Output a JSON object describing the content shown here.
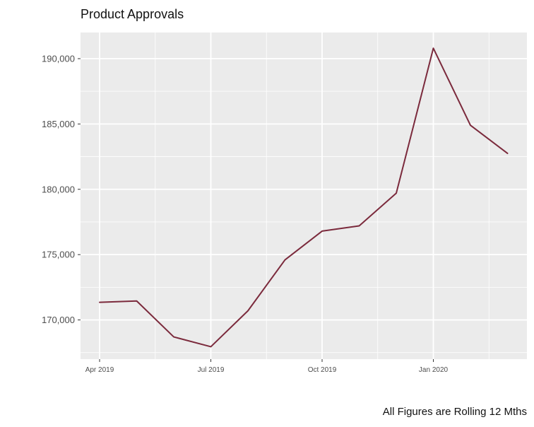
{
  "chart_data": {
    "type": "line",
    "title": "Product Approvals",
    "caption": "All Figures are Rolling 12 Mths",
    "xlabel": "",
    "ylabel": "",
    "x": [
      "2019-04",
      "2019-05",
      "2019-06",
      "2019-07",
      "2019-08",
      "2019-09",
      "2019-10",
      "2019-11",
      "2019-12",
      "2020-01",
      "2020-02",
      "2020-03"
    ],
    "x_ticks": [
      {
        "x": "2019-04",
        "label": "Apr 2019"
      },
      {
        "x": "2019-07",
        "label": "Jul 2019"
      },
      {
        "x": "2019-10",
        "label": "Oct 2019"
      },
      {
        "x": "2020-01",
        "label": "Jan 2020"
      }
    ],
    "y_ticks": [
      {
        "value": 170000,
        "label": "170,000"
      },
      {
        "value": 175000,
        "label": "175,000"
      },
      {
        "value": 180000,
        "label": "180,000"
      },
      {
        "value": 185000,
        "label": "185,000"
      },
      {
        "value": 190000,
        "label": "190,000"
      }
    ],
    "ylim": [
      167000,
      192000
    ],
    "series": [
      {
        "values": [
          171350,
          171450,
          168700,
          167950,
          170700,
          174600,
          176800,
          177200,
          179700,
          190800,
          184900,
          182750
        ],
        "color": "#7b2a3c"
      }
    ],
    "grid": true,
    "panel_background": "#ebebeb",
    "grid_color": "#ffffff"
  }
}
